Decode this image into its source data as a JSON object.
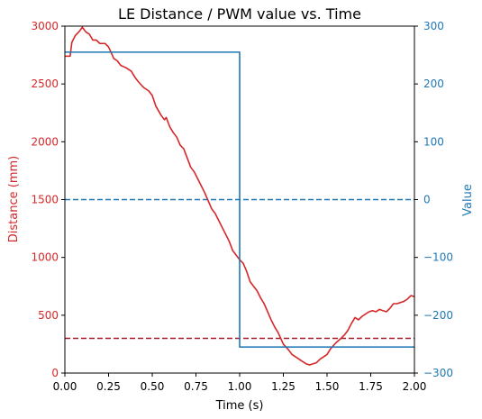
{
  "chart_data": {
    "type": "line",
    "title": "LE Distance / PWM value vs. Time",
    "xlabel": "Time (s)",
    "ylabel_left": "Distance (mm)",
    "ylabel_right": "Value",
    "xlim": [
      0,
      2
    ],
    "ylim_left": [
      0,
      3000
    ],
    "ylim_right": [
      -300,
      300
    ],
    "x_ticks": [
      "0.00",
      "0.25",
      "0.50",
      "0.75",
      "1.00",
      "1.25",
      "1.50",
      "1.75",
      "2.00"
    ],
    "y_left_ticks": [
      "0",
      "500",
      "1000",
      "1500",
      "2000",
      "2500",
      "3000"
    ],
    "y_right_ticks": [
      "−300",
      "−200",
      "−100",
      "0",
      "100",
      "200",
      "300"
    ],
    "colors": {
      "distance": "#d62728",
      "pwm": "#1f77b4",
      "distance_ref": "#a61c28",
      "pwm_ref": "#1f77b4",
      "left_axis_text": "#d62728",
      "right_axis_text": "#1f77b4"
    },
    "series": [
      {
        "axis": "left",
        "x": [
          0.0,
          0.03,
          0.04,
          0.06,
          0.08,
          0.1,
          0.12,
          0.14,
          0.16,
          0.18,
          0.2,
          0.23,
          0.25,
          0.28,
          0.3,
          0.32,
          0.35,
          0.38,
          0.4,
          0.42,
          0.45,
          0.48,
          0.5,
          0.52,
          0.55,
          0.57,
          0.58,
          0.6,
          0.62,
          0.64,
          0.66,
          0.68,
          0.7,
          0.72,
          0.74,
          0.76,
          0.78,
          0.8,
          0.82,
          0.84,
          0.86,
          0.88,
          0.9,
          0.92,
          0.94,
          0.96,
          0.98,
          1.0,
          1.02,
          1.04,
          1.06,
          1.08,
          1.1,
          1.12,
          1.14,
          1.16,
          1.18,
          1.2,
          1.22,
          1.25,
          1.28,
          1.3,
          1.33,
          1.36,
          1.38,
          1.4,
          1.42,
          1.44,
          1.46,
          1.48,
          1.5,
          1.52,
          1.55,
          1.58,
          1.6,
          1.62,
          1.64,
          1.66,
          1.68,
          1.7,
          1.72,
          1.74,
          1.76,
          1.78,
          1.8,
          1.82,
          1.84,
          1.86,
          1.88,
          1.9,
          1.92,
          1.94,
          1.96,
          1.98,
          2.0
        ],
        "values": [
          2740,
          2740,
          2860,
          2920,
          2950,
          2990,
          2950,
          2930,
          2880,
          2880,
          2850,
          2850,
          2820,
          2720,
          2700,
          2660,
          2640,
          2610,
          2560,
          2520,
          2470,
          2440,
          2400,
          2310,
          2230,
          2190,
          2210,
          2130,
          2080,
          2040,
          1970,
          1940,
          1860,
          1780,
          1740,
          1680,
          1620,
          1560,
          1490,
          1420,
          1380,
          1320,
          1260,
          1200,
          1140,
          1060,
          1020,
          980,
          950,
          880,
          790,
          750,
          710,
          650,
          600,
          530,
          460,
          400,
          350,
          250,
          200,
          160,
          130,
          100,
          80,
          70,
          80,
          90,
          120,
          140,
          160,
          210,
          260,
          300,
          330,
          370,
          430,
          480,
          460,
          490,
          510,
          530,
          540,
          530,
          550,
          540,
          530,
          560,
          600,
          600,
          610,
          620,
          640,
          670,
          660
        ]
      },
      {
        "axis": "right",
        "x": [
          0.0,
          1.0,
          1.0,
          2.0
        ],
        "values": [
          255,
          255,
          -255,
          -255
        ]
      }
    ],
    "reference_lines": [
      {
        "axis": "right",
        "value": 0,
        "style": "dashed"
      },
      {
        "axis": "left",
        "value": 300,
        "style": "dashed"
      }
    ],
    "grid": false,
    "legend": "none"
  }
}
